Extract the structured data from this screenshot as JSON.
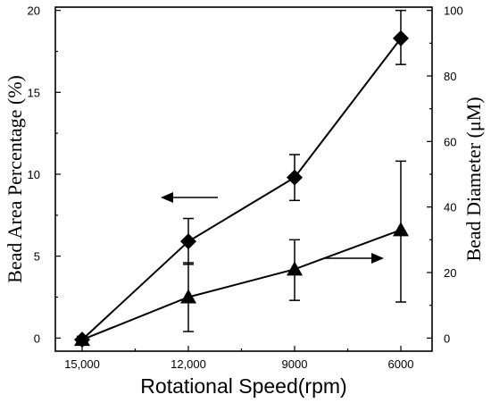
{
  "chart_data": {
    "type": "line",
    "xlabel": "Rotational Speed(rpm)",
    "ylabel_left": "Bead Area Percentage (%)",
    "ylabel_right": "Bead Diameter (μM)",
    "categories": [
      "15,000",
      "12,000",
      "9000",
      "6000"
    ],
    "y_left_ticks": [
      "0",
      "5",
      "10",
      "15",
      "20"
    ],
    "y_right_ticks": [
      "0",
      "20",
      "40",
      "60",
      "80",
      "100"
    ],
    "y_left_range": [
      -0.8,
      20.2
    ],
    "y_right_range": [
      -4,
      101
    ],
    "series": [
      {
        "axis": "left",
        "marker": "diamond",
        "values": [
          -0.1,
          5.9,
          9.8,
          18.3
        ],
        "err_low": [
          -0.3,
          4.5,
          8.4,
          16.7
        ],
        "err_high": [
          0.1,
          7.3,
          11.2,
          20.0
        ]
      },
      {
        "axis": "right",
        "marker": "triangle",
        "values": [
          -0.5,
          12.5,
          21.0,
          33.0
        ],
        "err_low": [
          -1.5,
          2.0,
          11.5,
          11.0
        ],
        "err_high": [
          0.5,
          23.0,
          30.0,
          54.0
        ]
      }
    ],
    "annotations": [
      {
        "type": "arrow",
        "direction": "left",
        "meaning": "left-axis series"
      },
      {
        "type": "arrow",
        "direction": "right",
        "meaning": "right-axis series"
      }
    ]
  }
}
